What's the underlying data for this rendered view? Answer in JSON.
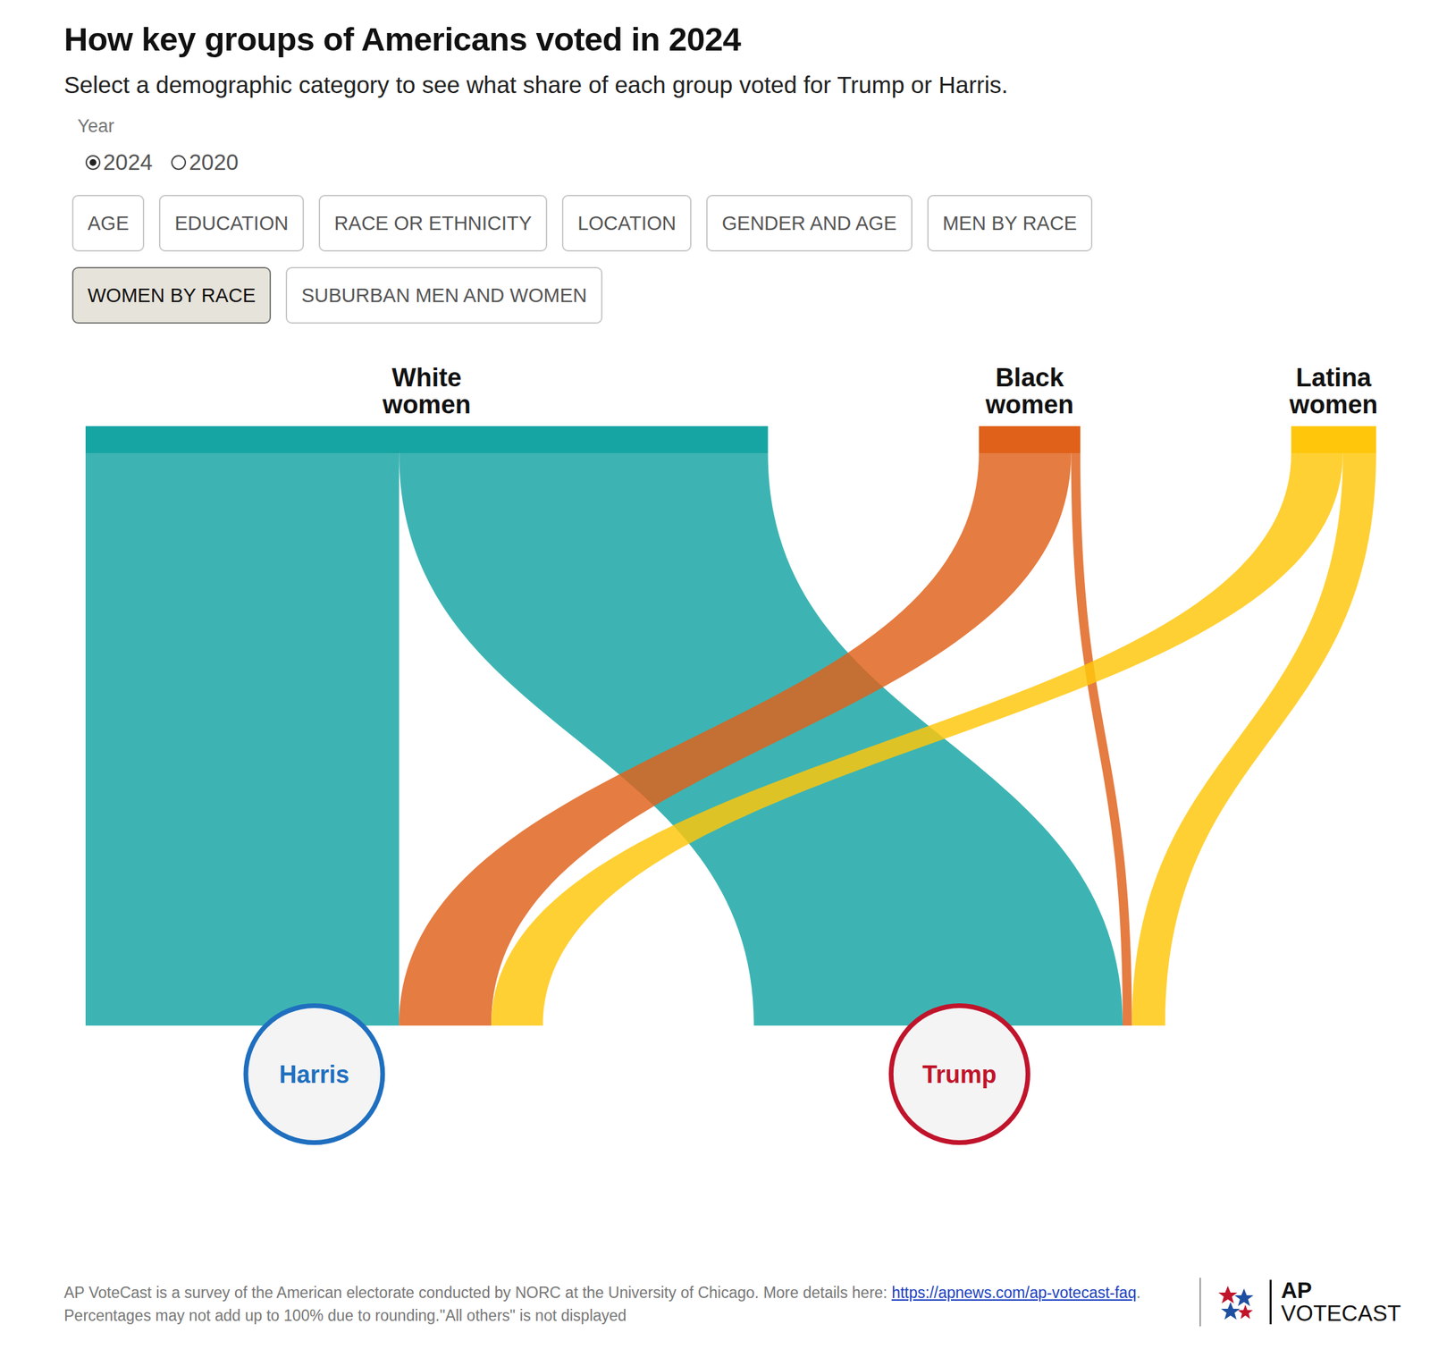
{
  "header": {
    "title": "How key groups of Americans voted in 2024",
    "subtitle": "Select a demographic category to see what share of each group voted for Trump or Harris."
  },
  "controls": {
    "year_label": "Year",
    "years": [
      "2024",
      "2020"
    ],
    "selected_year": "2024",
    "buttons": [
      "AGE",
      "EDUCATION",
      "RACE OR ETHNICITY",
      "LOCATION",
      "GENDER AND AGE",
      "MEN BY RACE",
      "WOMEN BY RACE",
      "SUBURBAN MEN AND WOMEN"
    ],
    "selected_button": "WOMEN BY RACE"
  },
  "chart_data": {
    "type": "sankey",
    "nodes": [
      {
        "name": "White women",
        "color": "#16a5a3"
      },
      {
        "name": "Black women",
        "color": "#e0611a"
      },
      {
        "name": "Latina women",
        "color": "#ffc60b"
      },
      {
        "name": "Harris",
        "color": "#1f6fbf"
      },
      {
        "name": "Trump",
        "color": "#c0142b"
      }
    ],
    "links": [
      {
        "source": "White women",
        "target": "Harris",
        "value": 17.0
      },
      {
        "source": "White women",
        "target": "Trump",
        "value": 20.0
      },
      {
        "source": "Black women",
        "target": "Harris",
        "value": 5.0
      },
      {
        "source": "Black women",
        "target": "Trump",
        "value": 0.5
      },
      {
        "source": "Latina women",
        "target": "Harris",
        "value": 2.8
      },
      {
        "source": "Latina women",
        "target": "Trump",
        "value": 1.8
      }
    ]
  },
  "footer": {
    "line1": "AP VoteCast is a survey of the American electorate conducted by NORC at the University of Chicago. More details here: ",
    "link": "https://apnews.com/ap-votecast-faq",
    "line1_end": ".",
    "line2": "Percentages may not add up to 100% due to rounding.\"All others\" is not displayed",
    "logo": [
      "AP",
      "VOTECAST"
    ]
  }
}
